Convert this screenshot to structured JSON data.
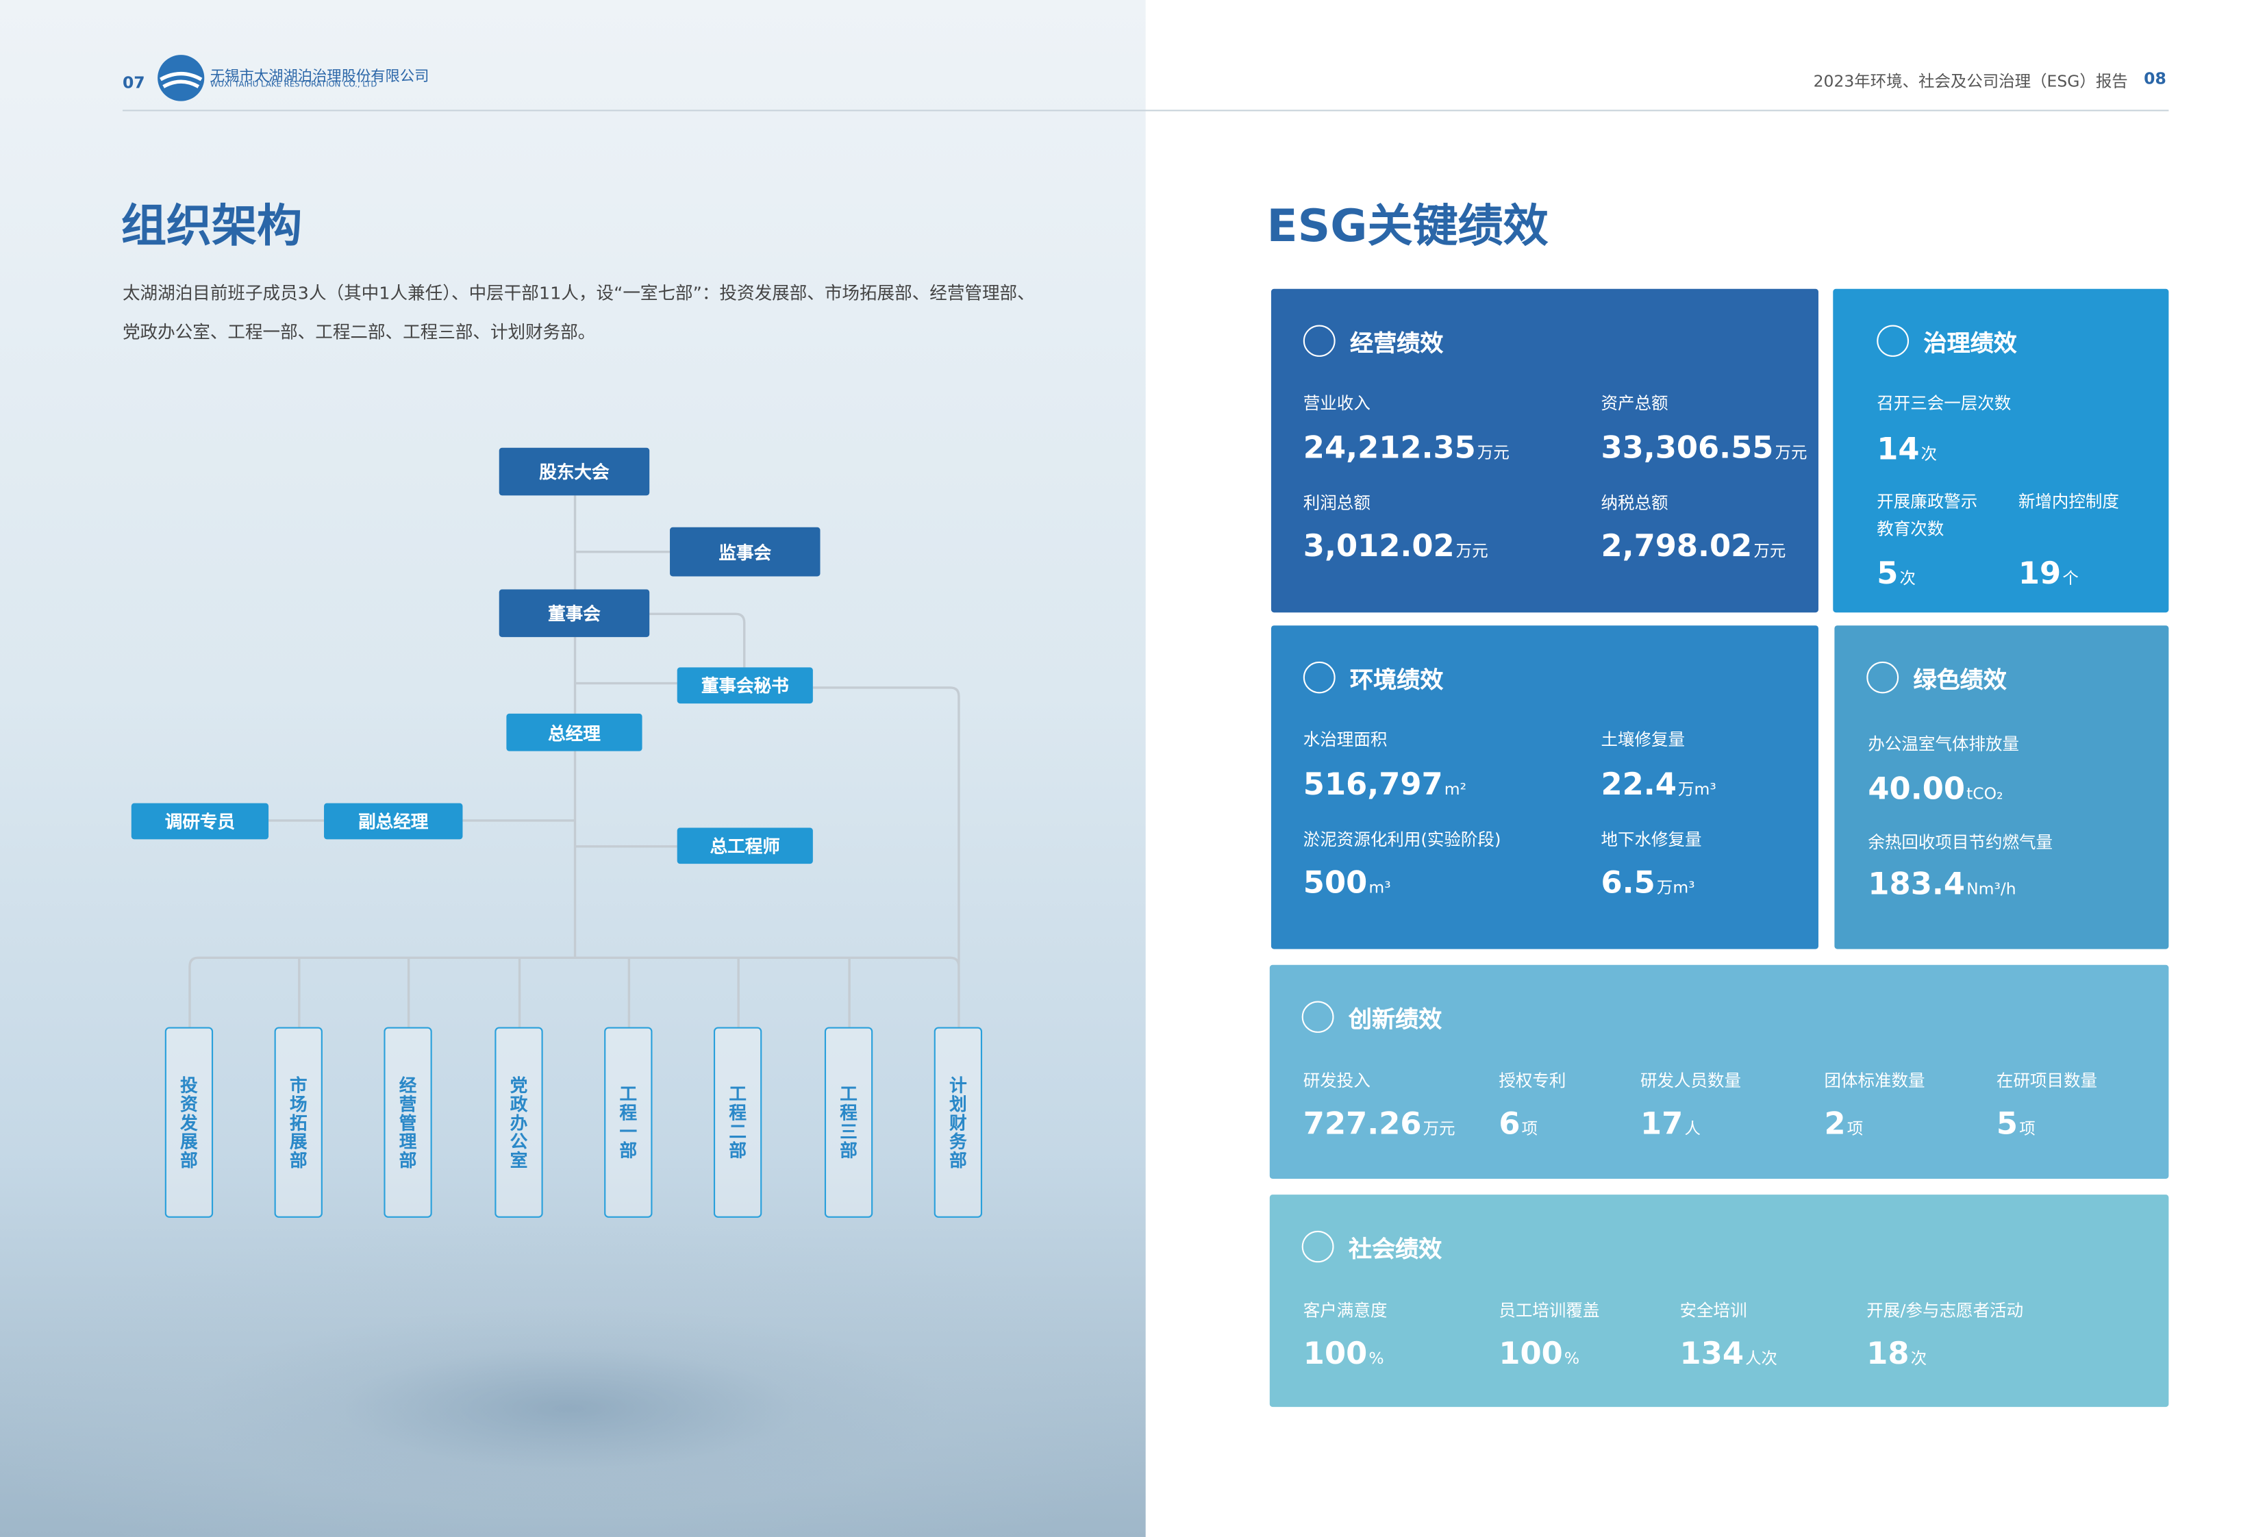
{
  "header": {
    "left_page": "07",
    "logo_name": "无锡市太湖湖泊治理股份有限公司",
    "logo_en": "WUXI TAIHU LAKE RESTORATION CO., LTD",
    "right_title": "2023年环境、社会及公司治理（ESG）报告",
    "right_page": "08"
  },
  "left": {
    "title": "组织架构",
    "paragraph": "太湖湖泊目前班子成员3人（其中1人兼任）、中层干部11人，设“一室七部”：投资发展部、市场拓展部、经营管理部、党政办公室、工程一部、工程二部、工程三部、计划财务部。"
  },
  "org_chart": {
    "nodes": [
      "股东大会",
      "监事会",
      "董事会",
      "董事会秘书",
      "总经理",
      "调研专员",
      "副总经理",
      "总工程师"
    ],
    "departments": [
      "投资发展部",
      "市场拓展部",
      "经营管理部",
      "党政办公室",
      "工程一部",
      "工程二部",
      "工程三部",
      "计划财务部"
    ]
  },
  "right": {
    "title": "ESG关键绩效",
    "panels": [
      {
        "title": "经营绩效",
        "items": [
          {
            "label": "营业收入",
            "value": "24,212.35",
            "unit": "万元"
          },
          {
            "label": "资产总额",
            "value": "33,306.55",
            "unit": "万元"
          },
          {
            "label": "利润总额",
            "value": "3,012.02",
            "unit": "万元"
          },
          {
            "label": "纳税总额",
            "value": "2,798.02",
            "unit": "万元"
          }
        ]
      },
      {
        "title": "治理绩效",
        "items": [
          {
            "label": "召开三会一层次数",
            "value": "14",
            "unit": "次"
          },
          {
            "label": "开展廉政警示教育次数",
            "value": "5",
            "unit": "次"
          },
          {
            "label": "新增内控制度",
            "value": "19",
            "unit": "个"
          }
        ]
      },
      {
        "title": "环境绩效",
        "items": [
          {
            "label": "水治理面积",
            "value": "516,797",
            "unit": "m²"
          },
          {
            "label": "土壤修复量",
            "value": "22.4",
            "unit": "万m³"
          },
          {
            "label": "淤泥资源化利用(实验阶段)",
            "value": "500",
            "unit": "m³"
          },
          {
            "label": "地下水修复量",
            "value": "6.5",
            "unit": "万m³"
          }
        ]
      },
      {
        "title": "绿色绩效",
        "items": [
          {
            "label": "办公温室气体排放量",
            "value": "40.00",
            "unit": "tCO₂"
          },
          {
            "label": "余热回收项目节约燃气量",
            "value": "183.4",
            "unit": "Nm³/h"
          }
        ]
      },
      {
        "title": "创新绩效",
        "items": [
          {
            "label": "研发投入",
            "value": "727.26",
            "unit": "万元"
          },
          {
            "label": "授权专利",
            "value": "6",
            "unit": "项"
          },
          {
            "label": "研发人员数量",
            "value": "17",
            "unit": "人"
          },
          {
            "label": "团体标准数量",
            "value": "2",
            "unit": "项"
          },
          {
            "label": "在研项目数量",
            "value": "5",
            "unit": "项"
          }
        ]
      },
      {
        "title": "社会绩效",
        "items": [
          {
            "label": "客户满意度",
            "value": "100",
            "unit": "%"
          },
          {
            "label": "员工培训覆盖",
            "value": "100",
            "unit": "%"
          },
          {
            "label": "安全培训",
            "value": "134",
            "unit": "人次"
          },
          {
            "label": "开展/参与志愿者活动",
            "value": "18",
            "unit": "次"
          }
        ]
      }
    ]
  }
}
